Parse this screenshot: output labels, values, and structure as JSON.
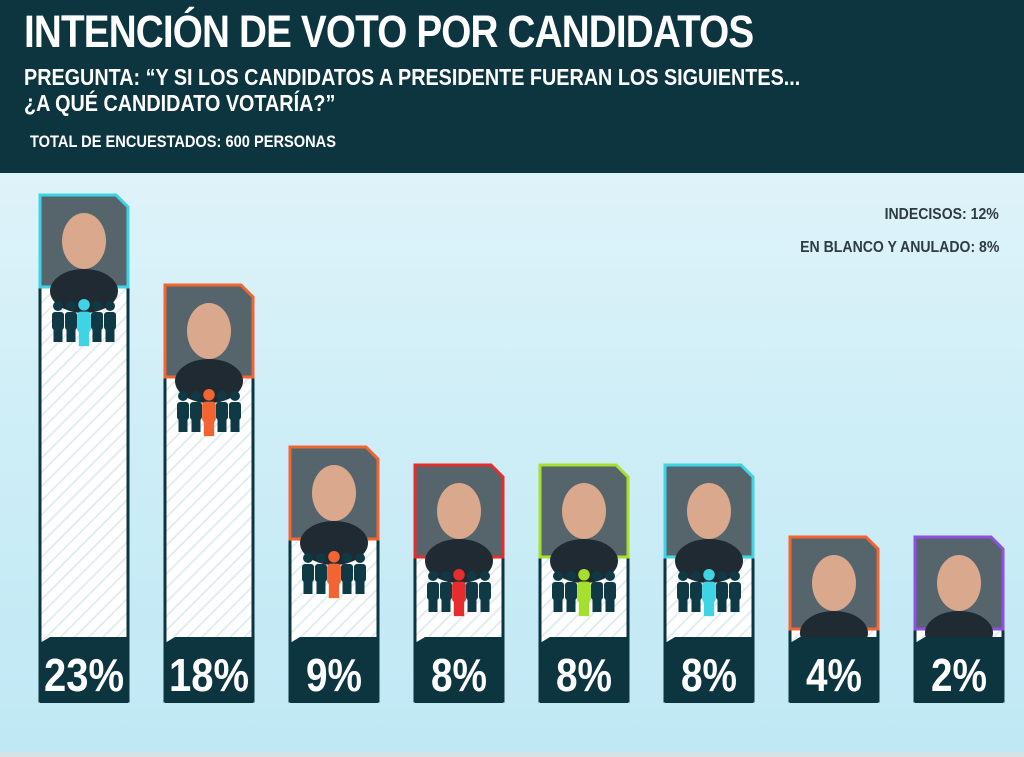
{
  "header": {
    "title": "INTENCIÓN DE VOTO POR CANDIDATOS",
    "question_line1": "PREGUNTA: “Y SI LOS CANDIDATOS A PRESIDENTE FUERAN LOS SIGUIENTES...",
    "question_line2": "¿A QUÉ CANDIDATO VOTARÍA?”",
    "total": "TOTAL DE ENCUESTADOS: 600 PERSONAS"
  },
  "notes": {
    "undecided": "INDECISOS: 12%",
    "blank_void": "EN BLANCO Y ANULADO: 8%"
  },
  "chart_data": {
    "type": "bar",
    "title": "INTENCIÓN DE VOTO POR CANDIDATOS",
    "categories": [
      "",
      "",
      "",
      "",
      "",
      "",
      "",
      ""
    ],
    "values": [
      23,
      18,
      9,
      8,
      8,
      8,
      4,
      2
    ],
    "labels": [
      "23%",
      "18%",
      "9%",
      "8%",
      "8%",
      "8%",
      "4%",
      "2%"
    ],
    "accent_colors": [
      "#3fd3e6",
      "#f26533",
      "#f26533",
      "#e52d2d",
      "#a6e02e",
      "#3fd3e6",
      "#f26533",
      "#8f4fe0"
    ],
    "icon": "people-group-icon",
    "ylim": [
      0,
      23
    ]
  }
}
